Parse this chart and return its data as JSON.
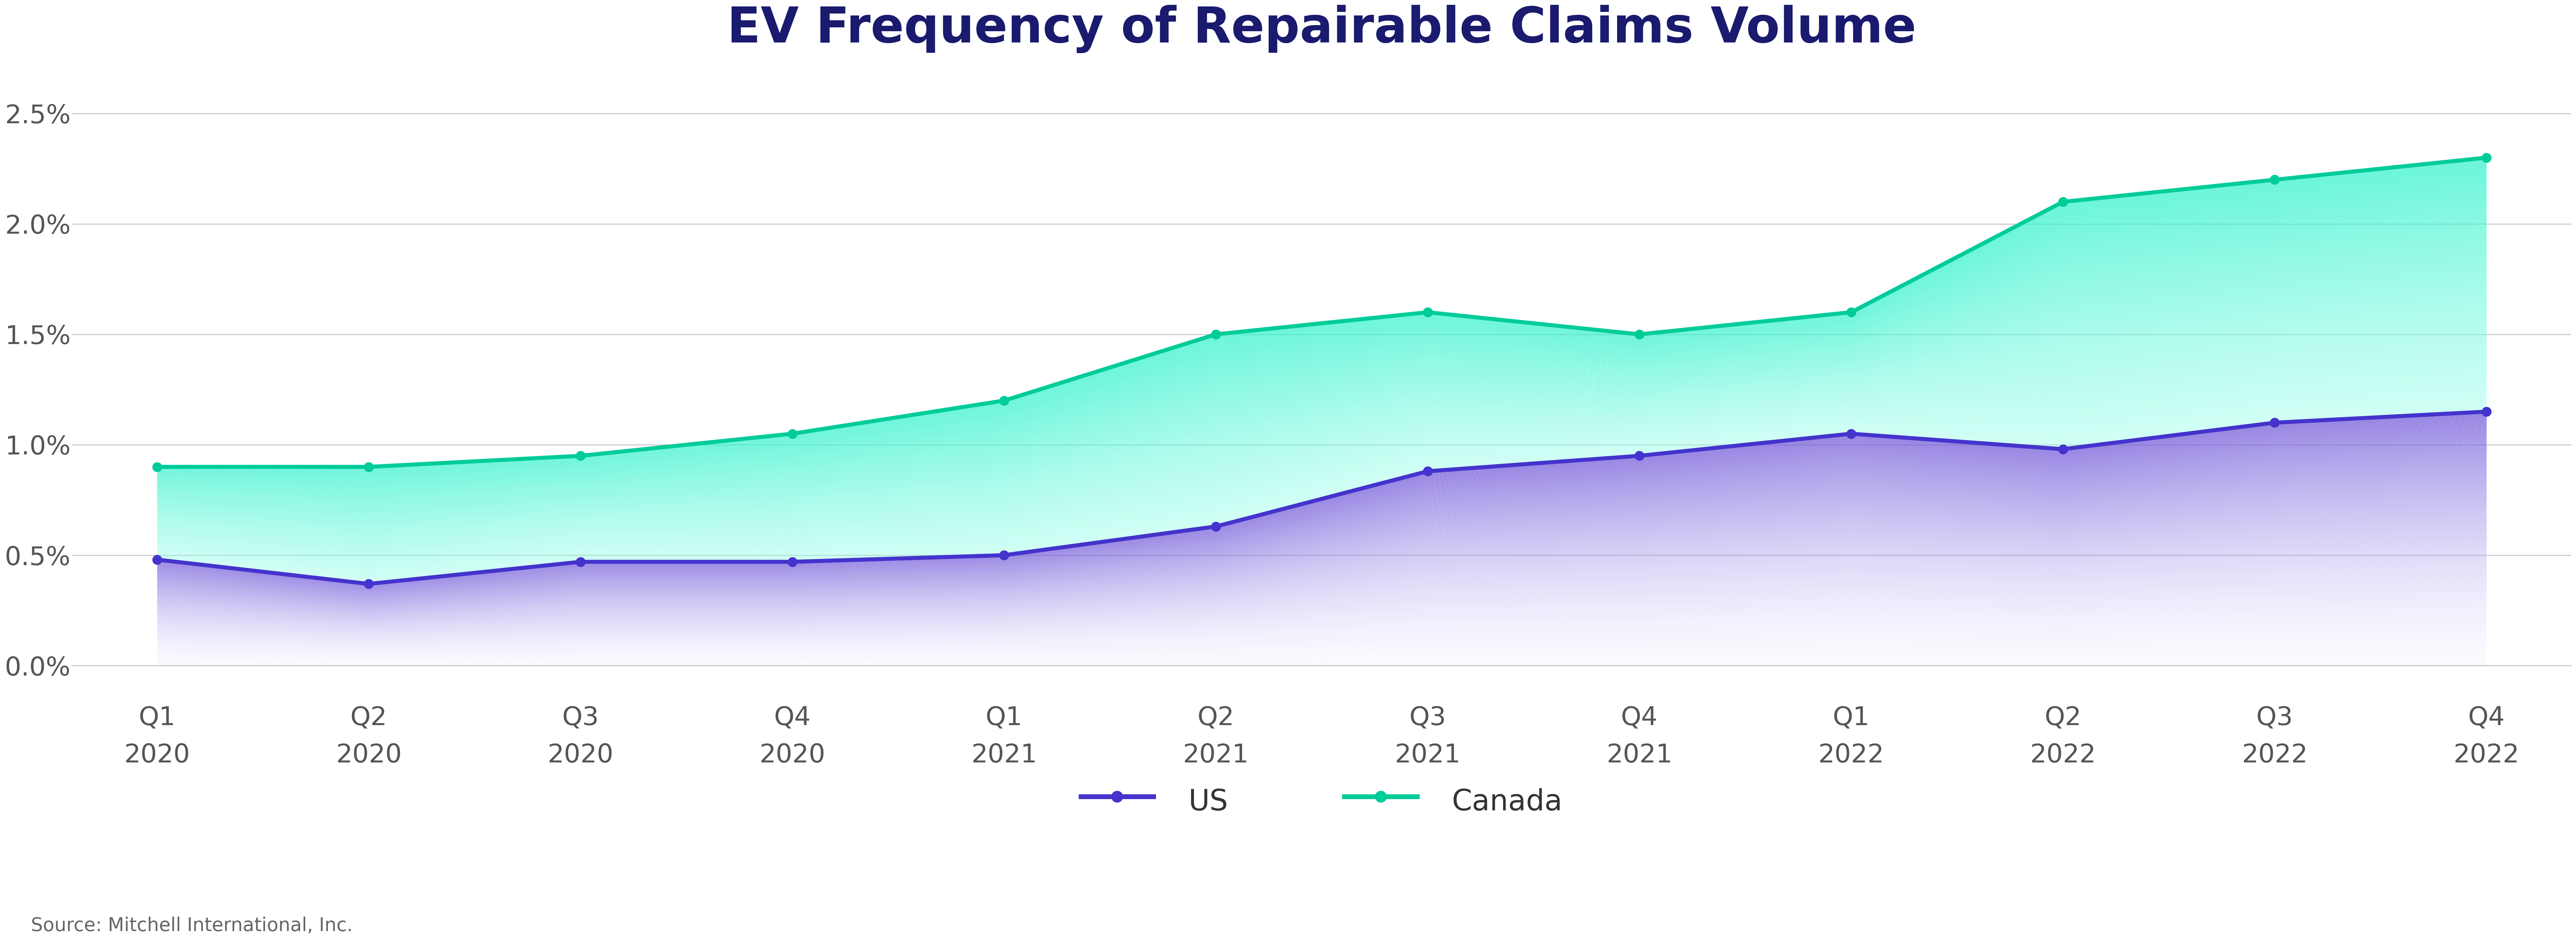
{
  "title": "EV Frequency of Repairable Claims Volume",
  "title_fontsize": 110,
  "title_fontweight": "bold",
  "title_color": "#1a1a6e",
  "x_labels_row1": [
    "Q1",
    "Q2",
    "Q3",
    "Q4",
    "Q1",
    "Q2",
    "Q3",
    "Q4",
    "Q1",
    "Q2",
    "Q3",
    "Q4"
  ],
  "x_labels_row2": [
    "2020",
    "2020",
    "2020",
    "2020",
    "2021",
    "2021",
    "2021",
    "2021",
    "2022",
    "2022",
    "2022",
    "2022"
  ],
  "us_values": [
    0.0048,
    0.0037,
    0.0047,
    0.0047,
    0.005,
    0.0063,
    0.0088,
    0.0095,
    0.0105,
    0.0098,
    0.011,
    0.0115
  ],
  "canada_values": [
    0.009,
    0.009,
    0.0095,
    0.0105,
    0.012,
    0.015,
    0.016,
    0.015,
    0.016,
    0.021,
    0.022,
    0.023
  ],
  "us_line_color": "#4433cc",
  "canada_line_color": "#00cc99",
  "ylim": [
    0,
    0.027
  ],
  "yticks": [
    0.0,
    0.005,
    0.01,
    0.015,
    0.02,
    0.025
  ],
  "ytick_labels": [
    "0.0%",
    "0.5%",
    "1.0%",
    "1.5%",
    "2.0%",
    "2.5%"
  ],
  "tick_fontsize": 58,
  "legend_fontsize": 65,
  "source_text": "Source: Mitchell International, Inc.",
  "source_fontsize": 42,
  "background_color": "#ffffff",
  "grid_color": "#cccccc",
  "marker_size": 22,
  "line_width": 9
}
